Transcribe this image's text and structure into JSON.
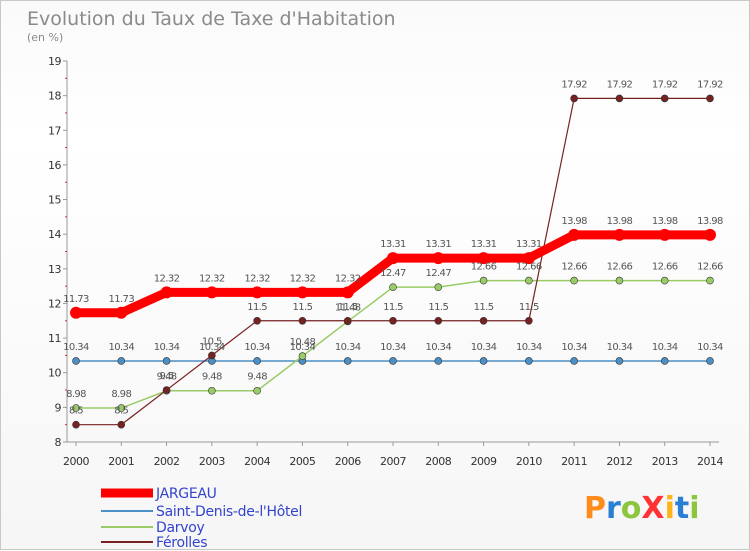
{
  "chart_data": {
    "type": "line",
    "title": "Evolution du Taux de Taxe d'Habitation",
    "ylabel": "(en %)",
    "xlabel": "",
    "x": [
      "2000",
      "2001",
      "2002",
      "2003",
      "2004",
      "2005",
      "2006",
      "2007",
      "2008",
      "2009",
      "2010",
      "2011",
      "2012",
      "2013",
      "2014"
    ],
    "ylim": [
      8,
      19
    ],
    "yticks": [
      8,
      9,
      10,
      11,
      12,
      13,
      14,
      15,
      16,
      17,
      18,
      19
    ],
    "series": [
      {
        "name": "JARGEAU",
        "color": "#ff0000",
        "values": [
          11.73,
          11.73,
          12.32,
          12.32,
          12.32,
          12.32,
          12.32,
          13.31,
          13.31,
          13.31,
          13.31,
          13.98,
          13.98,
          13.98,
          13.98
        ],
        "labels": [
          "11.73",
          "11.73",
          "12.32",
          "12.32",
          "12.32",
          "12.32",
          "12.32",
          "13.31",
          "13.31",
          "13.31",
          "13.31",
          "13.98",
          "13.98",
          "13.98",
          "13.98"
        ]
      },
      {
        "name": "Saint-Denis-de-l'Hôtel",
        "color": "#4a8fc6",
        "values": [
          10.34,
          10.34,
          10.34,
          10.34,
          10.34,
          10.34,
          10.34,
          10.34,
          10.34,
          10.34,
          10.34,
          10.34,
          10.34,
          10.34,
          10.34
        ],
        "labels": [
          "10.34",
          "10.34",
          "10.34",
          "10.34",
          "10.34",
          "10.34",
          "10.34",
          "10.34",
          "10.34",
          "10.34",
          "10.34",
          "10.34",
          "10.34",
          "10.34",
          "10.34"
        ]
      },
      {
        "name": "Darvoy",
        "color": "#99cc66",
        "values": [
          8.98,
          8.98,
          9.48,
          9.48,
          9.48,
          10.48,
          11.48,
          12.47,
          12.47,
          12.66,
          12.66,
          12.66,
          12.66,
          12.66,
          12.66
        ],
        "labels": [
          "8.98",
          "8.98",
          "9.48",
          "9.48",
          "9.48",
          "10.48",
          "11.48",
          "12.47",
          "12.47",
          "12.66",
          "12.66",
          "12.66",
          "12.66",
          "12.66",
          "12.66"
        ]
      },
      {
        "name": "Férolles",
        "color": "#772222",
        "values": [
          8.5,
          8.5,
          9.5,
          10.5,
          11.5,
          11.5,
          11.5,
          11.5,
          11.5,
          11.5,
          11.5,
          17.92,
          17.92,
          17.92,
          17.92
        ],
        "labels": [
          "8.5",
          "8.5",
          "9.5",
          "10.5",
          "11.5",
          "11.5",
          "11.5",
          "11.5",
          "11.5",
          "11.5",
          "11.5",
          "17.92",
          "17.92",
          "17.92",
          "17.92"
        ]
      }
    ],
    "legend": {
      "position": "bottom-left"
    }
  },
  "brand": {
    "text": "ProXiti",
    "colors": [
      "#ff8c1a",
      "#2a7fd4",
      "#8cc63f",
      "#ff3333",
      "#ffb31a",
      "#2a7fd4",
      "#8cc63f"
    ]
  }
}
